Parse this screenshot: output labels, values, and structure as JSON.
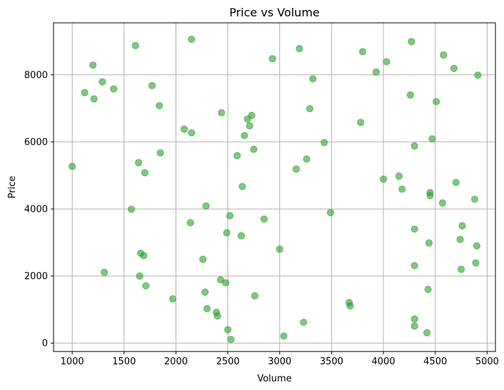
{
  "chart_data": {
    "type": "scatter",
    "title": "Price vs Volume",
    "xlabel": "Volume",
    "ylabel": "Price",
    "xlim": [
      820,
      5080
    ],
    "ylim": [
      -250,
      9550
    ],
    "xticks": [
      1000,
      1500,
      2000,
      2500,
      3000,
      3500,
      4000,
      4500,
      5000
    ],
    "yticks": [
      0,
      2000,
      4000,
      6000,
      8000
    ],
    "grid": true,
    "point_color": "#2ca02c",
    "point_alpha": 0.6,
    "points": [
      {
        "x": 1000,
        "y": 5270
      },
      {
        "x": 1120,
        "y": 7470
      },
      {
        "x": 1200,
        "y": 8290
      },
      {
        "x": 1210,
        "y": 7280
      },
      {
        "x": 1290,
        "y": 7790
      },
      {
        "x": 1310,
        "y": 2110
      },
      {
        "x": 1400,
        "y": 7580
      },
      {
        "x": 1570,
        "y": 3990
      },
      {
        "x": 1610,
        "y": 8870
      },
      {
        "x": 1640,
        "y": 5380
      },
      {
        "x": 1650,
        "y": 2000
      },
      {
        "x": 1660,
        "y": 2680
      },
      {
        "x": 1690,
        "y": 2610
      },
      {
        "x": 1700,
        "y": 5080
      },
      {
        "x": 1710,
        "y": 1710
      },
      {
        "x": 1770,
        "y": 7680
      },
      {
        "x": 1840,
        "y": 7080
      },
      {
        "x": 1850,
        "y": 5670
      },
      {
        "x": 1970,
        "y": 1320
      },
      {
        "x": 2080,
        "y": 6380
      },
      {
        "x": 2140,
        "y": 3590
      },
      {
        "x": 2150,
        "y": 9060
      },
      {
        "x": 2150,
        "y": 6270
      },
      {
        "x": 2260,
        "y": 2500
      },
      {
        "x": 2280,
        "y": 1520
      },
      {
        "x": 2290,
        "y": 4090
      },
      {
        "x": 2300,
        "y": 1030
      },
      {
        "x": 2390,
        "y": 920
      },
      {
        "x": 2400,
        "y": 810
      },
      {
        "x": 2430,
        "y": 1890
      },
      {
        "x": 2440,
        "y": 6870
      },
      {
        "x": 2480,
        "y": 1800
      },
      {
        "x": 2490,
        "y": 3290
      },
      {
        "x": 2500,
        "y": 400
      },
      {
        "x": 2520,
        "y": 3800
      },
      {
        "x": 2530,
        "y": 110
      },
      {
        "x": 2590,
        "y": 5590
      },
      {
        "x": 2630,
        "y": 3200
      },
      {
        "x": 2640,
        "y": 4670
      },
      {
        "x": 2660,
        "y": 6190
      },
      {
        "x": 2690,
        "y": 6680
      },
      {
        "x": 2710,
        "y": 6480
      },
      {
        "x": 2730,
        "y": 6790
      },
      {
        "x": 2750,
        "y": 5780
      },
      {
        "x": 2760,
        "y": 1410
      },
      {
        "x": 2850,
        "y": 3700
      },
      {
        "x": 2930,
        "y": 8480
      },
      {
        "x": 3000,
        "y": 2800
      },
      {
        "x": 3040,
        "y": 210
      },
      {
        "x": 3160,
        "y": 5190
      },
      {
        "x": 3190,
        "y": 8780
      },
      {
        "x": 3230,
        "y": 620
      },
      {
        "x": 3260,
        "y": 5490
      },
      {
        "x": 3290,
        "y": 6990
      },
      {
        "x": 3320,
        "y": 7880
      },
      {
        "x": 3430,
        "y": 5980
      },
      {
        "x": 3490,
        "y": 3890
      },
      {
        "x": 3670,
        "y": 1210
      },
      {
        "x": 3680,
        "y": 1110
      },
      {
        "x": 3780,
        "y": 6580
      },
      {
        "x": 3800,
        "y": 8690
      },
      {
        "x": 3930,
        "y": 8080
      },
      {
        "x": 4000,
        "y": 4890
      },
      {
        "x": 4030,
        "y": 8390
      },
      {
        "x": 4150,
        "y": 4980
      },
      {
        "x": 4180,
        "y": 4590
      },
      {
        "x": 4260,
        "y": 7400
      },
      {
        "x": 4270,
        "y": 8990
      },
      {
        "x": 4300,
        "y": 5880
      },
      {
        "x": 4300,
        "y": 3400
      },
      {
        "x": 4300,
        "y": 2310
      },
      {
        "x": 4300,
        "y": 720
      },
      {
        "x": 4300,
        "y": 510
      },
      {
        "x": 4420,
        "y": 310
      },
      {
        "x": 4430,
        "y": 1600
      },
      {
        "x": 4440,
        "y": 2990
      },
      {
        "x": 4450,
        "y": 4490
      },
      {
        "x": 4450,
        "y": 4400
      },
      {
        "x": 4470,
        "y": 6090
      },
      {
        "x": 4510,
        "y": 7200
      },
      {
        "x": 4570,
        "y": 4180
      },
      {
        "x": 4580,
        "y": 8590
      },
      {
        "x": 4680,
        "y": 8190
      },
      {
        "x": 4700,
        "y": 4790
      },
      {
        "x": 4740,
        "y": 3090
      },
      {
        "x": 4750,
        "y": 2200
      },
      {
        "x": 4760,
        "y": 3500
      },
      {
        "x": 4880,
        "y": 4290
      },
      {
        "x": 4890,
        "y": 2390
      },
      {
        "x": 4900,
        "y": 2900
      },
      {
        "x": 4910,
        "y": 7990
      }
    ]
  }
}
